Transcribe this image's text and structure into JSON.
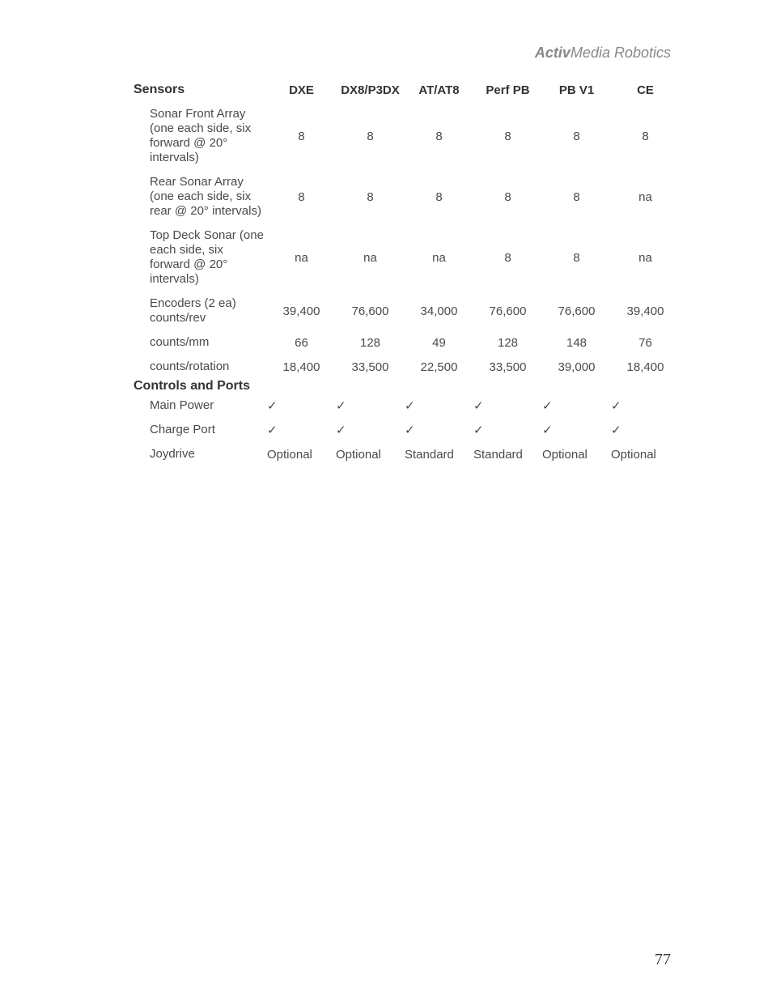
{
  "header": {
    "brand_italic_bold": "Activ",
    "brand_rest": "Media Robotics"
  },
  "columns": [
    "DXE",
    "DX8/P3DX",
    "AT/AT8",
    "Perf PB",
    "PB  V1",
    "CE"
  ],
  "sections": [
    {
      "title": "Sensors",
      "rows": [
        {
          "label": "Sonar Front Array (one each side, six forward @ 20° intervals)",
          "vals": [
            "8",
            "8",
            "8",
            "8",
            "8",
            "8"
          ]
        },
        {
          "label": "Rear Sonar Array (one each side, six rear  @ 20° intervals)",
          "vals": [
            "8",
            "8",
            "8",
            "8",
            "8",
            "na"
          ]
        },
        {
          "label": "Top Deck Sonar (one each side, six forward  @ 20° intervals)",
          "vals": [
            "na",
            "na",
            "na",
            "8",
            "8",
            "na"
          ]
        },
        {
          "label": "Encoders (2 ea) counts/rev",
          "vals": [
            "39,400",
            "76,600",
            "34,000",
            "76,600",
            "76,600",
            "39,400"
          ]
        },
        {
          "label": "counts/mm",
          "vals": [
            "66",
            "128",
            "49",
            "128",
            "148",
            "76"
          ]
        },
        {
          "label": "counts/rotation",
          "vals": [
            "18,400",
            "33,500",
            "22,500",
            "33,500",
            "39,000",
            "18,400"
          ]
        }
      ]
    },
    {
      "title": "Controls and Ports",
      "rows": [
        {
          "label": "Main Power",
          "vals": [
            "✓",
            "✓",
            "✓",
            "✓",
            "✓",
            "✓"
          ],
          "align": "left"
        },
        {
          "label": "Charge Port",
          "vals": [
            "✓",
            "✓",
            "✓",
            "✓",
            "✓",
            "✓"
          ],
          "align": "left"
        },
        {
          "label": "Joydrive",
          "vals": [
            "Optional",
            "Optional",
            "Standard",
            "Standard",
            "Optional",
            "Optional"
          ],
          "align": "left"
        }
      ]
    }
  ],
  "page_number": "77"
}
